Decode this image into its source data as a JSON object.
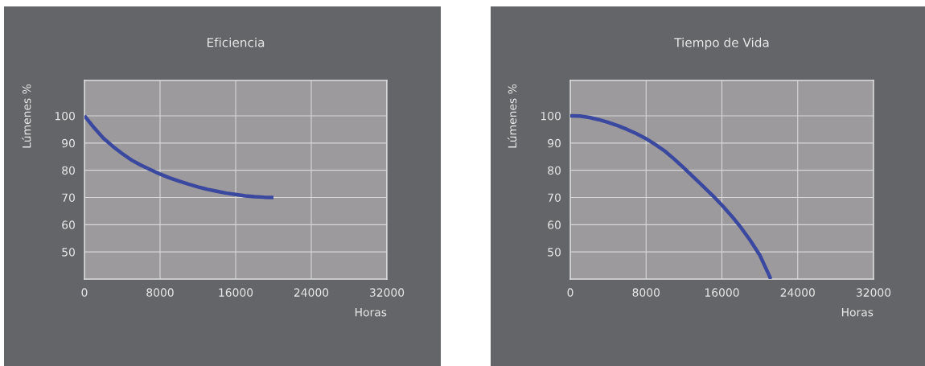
{
  "chart_data": [
    {
      "type": "line",
      "title": "Eficiencia",
      "xlabel": "Horas",
      "ylabel": "Lúmenes %",
      "xlim": [
        0,
        32000
      ],
      "ylim": [
        40,
        113
      ],
      "xticks": [
        0,
        8000,
        16000,
        24000,
        32000
      ],
      "yticks": [
        50,
        60,
        70,
        80,
        90,
        100
      ],
      "grid": true,
      "legend": false,
      "marker": "none",
      "line_style": "solid",
      "series": [
        {
          "color": "#3a48a0",
          "x": [
            0,
            1000,
            2000,
            3000,
            4000,
            5000,
            6000,
            7000,
            8000,
            9000,
            10000,
            11000,
            12000,
            13000,
            14000,
            15000,
            16000,
            17000,
            18000,
            19000,
            20000
          ],
          "values": [
            100,
            95.7,
            91.8,
            88.8,
            86.1,
            83.7,
            81.8,
            80.2,
            78.6,
            77.2,
            76.0,
            74.9,
            73.9,
            73.0,
            72.3,
            71.6,
            71.1,
            70.6,
            70.3,
            70.1,
            70.0
          ]
        }
      ]
    },
    {
      "type": "line",
      "title": "Tiempo de Vida",
      "xlabel": "Horas",
      "ylabel": "Lúmenes %",
      "xlim": [
        0,
        32000
      ],
      "ylim": [
        40,
        113
      ],
      "xticks": [
        0,
        8000,
        16000,
        24000,
        32000
      ],
      "yticks": [
        50,
        60,
        70,
        80,
        90,
        100
      ],
      "grid": true,
      "legend": false,
      "marker": "none",
      "line_style": "solid",
      "series": [
        {
          "color": "#3a48a0",
          "x": [
            0,
            1000,
            2000,
            3000,
            4000,
            5000,
            6000,
            7000,
            8000,
            9000,
            10000,
            11000,
            12000,
            13000,
            14000,
            15000,
            16000,
            17000,
            18000,
            19000,
            20000,
            21000,
            21150
          ],
          "values": [
            100,
            99.9,
            99.4,
            98.6,
            97.6,
            96.4,
            95.0,
            93.4,
            91.6,
            89.4,
            87.0,
            84.0,
            80.8,
            77.5,
            74.2,
            70.8,
            67.2,
            63.3,
            59.0,
            54.2,
            48.8,
            41.3,
            40
          ]
        }
      ]
    }
  ]
}
